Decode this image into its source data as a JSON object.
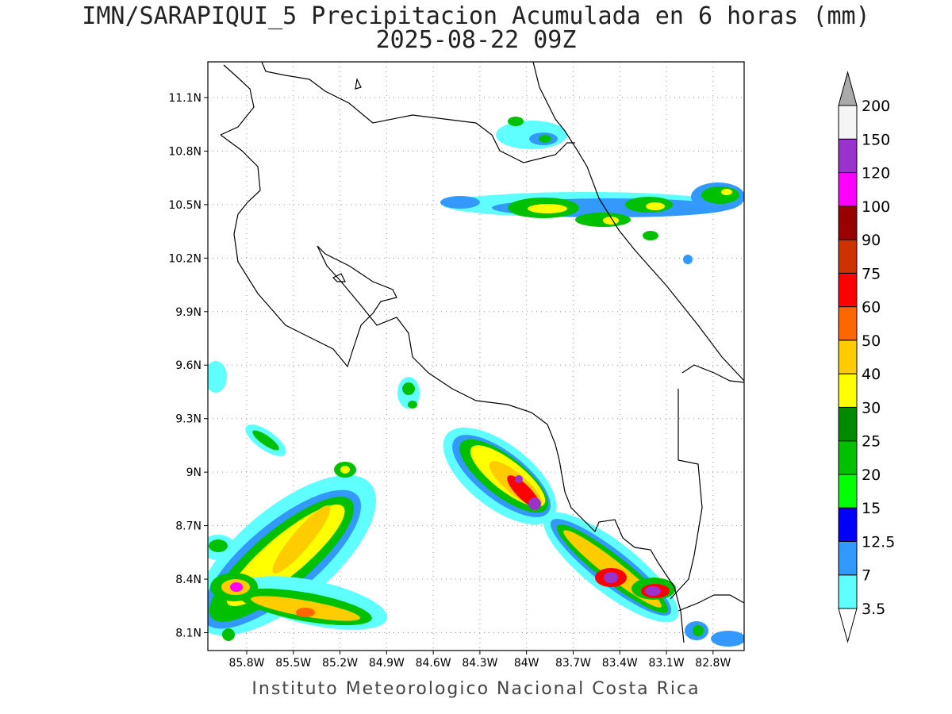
{
  "title_line1": "IMN/SARAPIQUI_5 Precipitacion Acumulada en 6 horas (mm)",
  "title_line2": "2025-08-22 09Z",
  "footer": "Instituto Meteorologico Nacional Costa Rica",
  "map": {
    "lon_range": [
      -86.05,
      -82.6
    ],
    "lat_range": [
      8.0,
      11.3
    ],
    "lat_ticks": [
      {
        "value": 8.1,
        "label": "8.1N"
      },
      {
        "value": 8.4,
        "label": "8.4N"
      },
      {
        "value": 8.7,
        "label": "8.7N"
      },
      {
        "value": 9.0,
        "label": "9N"
      },
      {
        "value": 9.3,
        "label": "9.3N"
      },
      {
        "value": 9.6,
        "label": "9.6N"
      },
      {
        "value": 9.9,
        "label": "9.9N"
      },
      {
        "value": 10.2,
        "label": "10.2N"
      },
      {
        "value": 10.5,
        "label": "10.5N"
      },
      {
        "value": 10.8,
        "label": "10.8N"
      },
      {
        "value": 11.1,
        "label": "11.1N"
      }
    ],
    "lon_ticks": [
      {
        "value": -85.8,
        "label": "85.8W"
      },
      {
        "value": -85.5,
        "label": "85.5W"
      },
      {
        "value": -85.2,
        "label": "85.2W"
      },
      {
        "value": -84.9,
        "label": "84.9W"
      },
      {
        "value": -84.6,
        "label": "84.6W"
      },
      {
        "value": -84.3,
        "label": "84.3W"
      },
      {
        "value": -84.0,
        "label": "84W"
      },
      {
        "value": -83.7,
        "label": "83.7W"
      },
      {
        "value": -83.4,
        "label": "83.4W"
      },
      {
        "value": -83.1,
        "label": "83.1W"
      },
      {
        "value": -82.8,
        "label": "82.8W"
      }
    ]
  },
  "colorbar": {
    "levels": [
      "3.5",
      "7",
      "12.5",
      "15",
      "20",
      "25",
      "30",
      "40",
      "50",
      "60",
      "75",
      "90",
      "100",
      "120",
      "150",
      "200"
    ],
    "colors": [
      "#ffffff",
      "#60ffff",
      "#3399ff",
      "#0000ff",
      "#00ff00",
      "#00c000",
      "#008a00",
      "#ffff00",
      "#ffcc00",
      "#ff6600",
      "#ff0000",
      "#cc3300",
      "#990000",
      "#ff00ff",
      "#9933cc",
      "#f5f5f5",
      "#aaaaaa"
    ]
  }
}
